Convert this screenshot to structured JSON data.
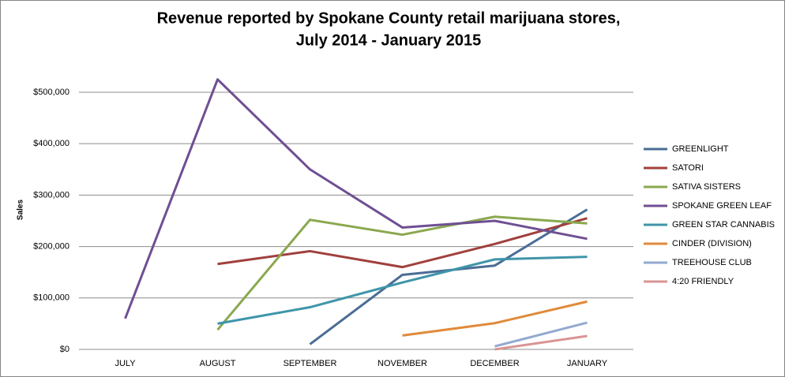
{
  "chart_data": {
    "type": "line",
    "title": [
      "Revenue reported by Spokane County retail marijuana stores,",
      "July 2014 - January 2015"
    ],
    "y_label": "Sales",
    "categories": [
      "JULY",
      "AUGUST",
      "SEPTEMBER",
      "NOVEMBER",
      "DECEMBER",
      "JANUARY"
    ],
    "series": [
      {
        "name": "GREENLIGHT",
        "color": "#4a6d95",
        "values": [
          null,
          null,
          10000,
          145000,
          163000,
          272000
        ]
      },
      {
        "name": "SATORI",
        "color": "#a0403d",
        "values": [
          null,
          166000,
          191000,
          160000,
          205000,
          255000
        ]
      },
      {
        "name": "SATIVA SISTERS",
        "color": "#8aa84f",
        "values": [
          null,
          38000,
          252000,
          223000,
          258000,
          245000
        ]
      },
      {
        "name": "SPOKANE GREEN LEAF",
        "color": "#6f4f93",
        "values": [
          60000,
          525000,
          350000,
          237000,
          250000,
          215000
        ]
      },
      {
        "name": "GREEN STAR CANNABIS",
        "color": "#3f95a9",
        "values": [
          null,
          50000,
          82000,
          130000,
          175000,
          180000
        ]
      },
      {
        "name": "CINDER (DIVISION)",
        "color": "#e08a3b",
        "values": [
          null,
          null,
          null,
          27000,
          51000,
          93000
        ]
      },
      {
        "name": "TREEHOUSE CLUB",
        "color": "#93a9cf",
        "values": [
          null,
          null,
          null,
          null,
          6000,
          52000
        ]
      },
      {
        "name": "4:20 FRIENDLY",
        "color": "#d99594",
        "values": [
          null,
          null,
          null,
          null,
          0,
          26000
        ]
      }
    ],
    "ylim": [
      0,
      549000
    ],
    "yticks": [
      {
        "value": 0,
        "label": "$0"
      },
      {
        "value": 100000,
        "label": "$100,000"
      },
      {
        "value": 200000,
        "label": "$200,000"
      },
      {
        "value": 300000,
        "label": "$300,000"
      },
      {
        "value": 400000,
        "label": "$400,000"
      },
      {
        "value": 500000,
        "label": "$500,000"
      }
    ],
    "grid": true,
    "legend": "right"
  }
}
